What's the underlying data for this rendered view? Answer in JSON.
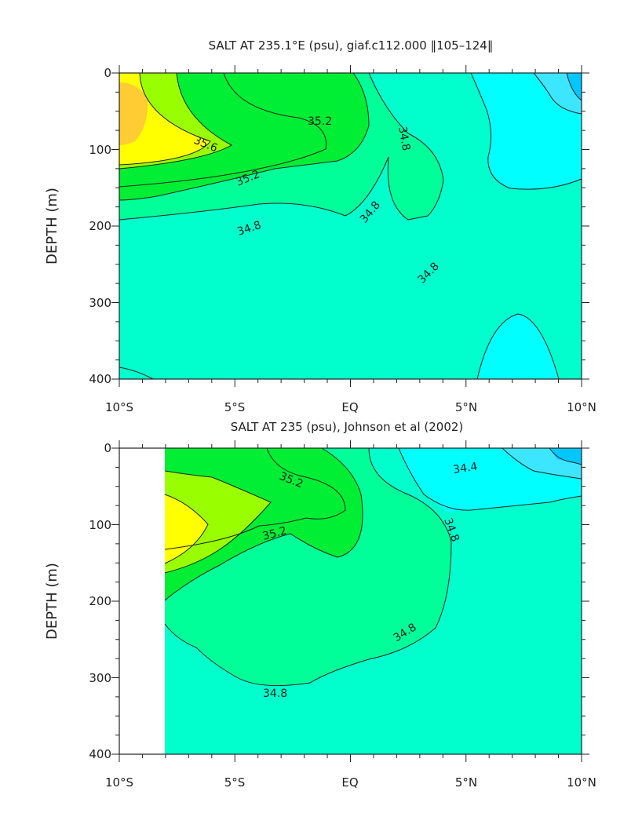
{
  "chart_data": [
    {
      "type": "heatmap",
      "title": "SALT AT 235.1°E (psu), giaf.c112.000 ‖105–124‖",
      "ylabel": "DEPTH (m)",
      "xlabel": "",
      "x_ticks": [
        "10°S",
        "5°S",
        "EQ",
        "5°N",
        "10°N"
      ],
      "y_ticks": [
        "0",
        "100",
        "200",
        "300",
        "400"
      ],
      "xlim": [
        -10,
        10
      ],
      "ylim": [
        400,
        0
      ],
      "contour_labels": [
        "35.6",
        "35.2",
        "35.2",
        "34.8",
        "34.8",
        "34.8",
        "34.8"
      ],
      "levels": [
        34.0,
        34.2,
        34.4,
        34.6,
        34.8,
        35.0,
        35.2,
        35.4,
        35.6,
        35.8
      ],
      "colors": [
        "#00c8ff",
        "#3ce6ff",
        "#00ffff",
        "#00ffcc",
        "#00ff99",
        "#00ee33",
        "#99ff00",
        "#ffff00",
        "#ffcc33"
      ]
    },
    {
      "type": "heatmap",
      "title": "SALT AT 235 (psu), Johnson et al (2002)",
      "ylabel": "DEPTH (m)",
      "xlabel": "",
      "x_ticks": [
        "10°S",
        "5°S",
        "EQ",
        "5°N",
        "10°N"
      ],
      "y_ticks": [
        "0",
        "100",
        "200",
        "300",
        "400"
      ],
      "xlim": [
        -10,
        10
      ],
      "ylim": [
        400,
        0
      ],
      "contour_labels": [
        "35.2",
        "35.2",
        "34.4",
        "34.8",
        "34.8",
        "34.8"
      ],
      "levels": [
        34.0,
        34.2,
        34.4,
        34.6,
        34.8,
        35.0,
        35.2,
        35.4,
        35.6
      ],
      "colors": [
        "#00c8ff",
        "#3ce6ff",
        "#00ffff",
        "#00ffcc",
        "#00ff99",
        "#00ee33",
        "#99ff00",
        "#ffff00"
      ]
    }
  ]
}
